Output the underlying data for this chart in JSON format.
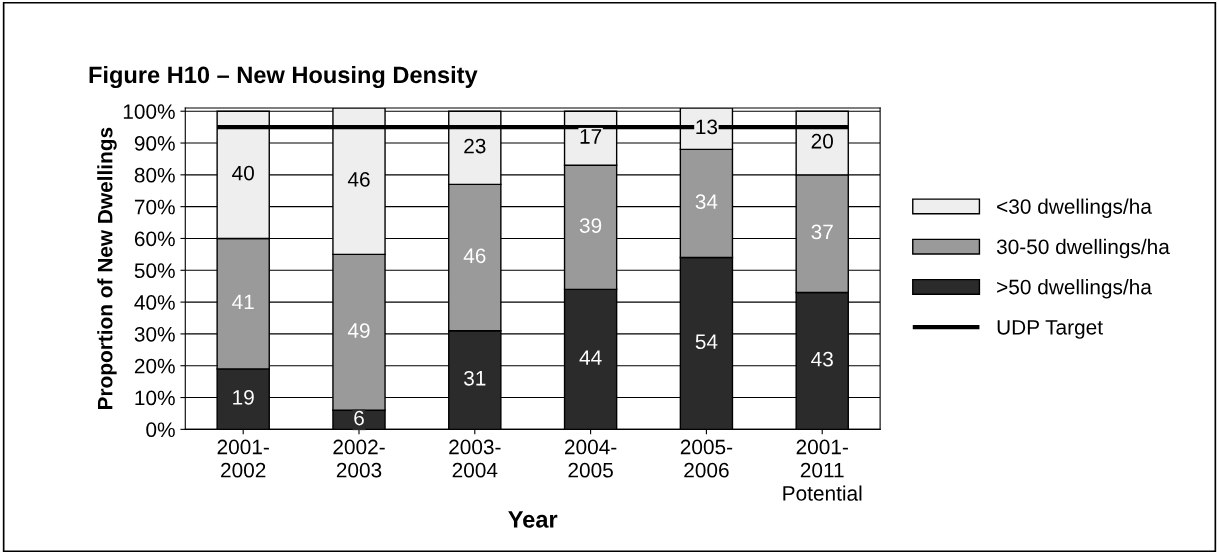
{
  "chart_data": {
    "type": "bar",
    "stacked": true,
    "title": "Figure H10 – New Housing Density",
    "xlabel": "Year",
    "ylabel": "Proportion of New Dwellings",
    "categories": [
      "2001-\n2002",
      "2002-\n2003",
      "2003-\n2004",
      "2004-\n2005",
      "2005-\n2006",
      "2001-\n2011\nPotential"
    ],
    "series": [
      {
        "name": ">50 dwellings/ha",
        "color": "#2b2b2b",
        "values": [
          19,
          6,
          31,
          44,
          54,
          43
        ]
      },
      {
        "name": "30-50 dwellings/ha",
        "color": "#9a9a9a",
        "values": [
          41,
          49,
          46,
          39,
          34,
          37
        ]
      },
      {
        "name": "<30 dwellings/ha",
        "color": "#eeeeee",
        "values": [
          40,
          46,
          23,
          17,
          13,
          20
        ]
      }
    ],
    "ylim": [
      0,
      101
    ],
    "yticks": [
      {
        "value": 0,
        "label": "0%"
      },
      {
        "value": 10,
        "label": "10%"
      },
      {
        "value": 20,
        "label": "20%"
      },
      {
        "value": 30,
        "label": "30%"
      },
      {
        "value": 40,
        "label": "40%"
      },
      {
        "value": 50,
        "label": "50%"
      },
      {
        "value": 60,
        "label": "60%"
      },
      {
        "value": 70,
        "label": "70%"
      },
      {
        "value": 80,
        "label": "80%"
      },
      {
        "value": 90,
        "label": "90%"
      },
      {
        "value": 100,
        "label": "100%"
      }
    ],
    "ref_lines": [
      {
        "axis": "y",
        "value": 95,
        "label": "UDP Target",
        "color": "#000000",
        "line_style": "solid"
      }
    ],
    "data_labels": true,
    "grid": "y",
    "legend": "right"
  }
}
